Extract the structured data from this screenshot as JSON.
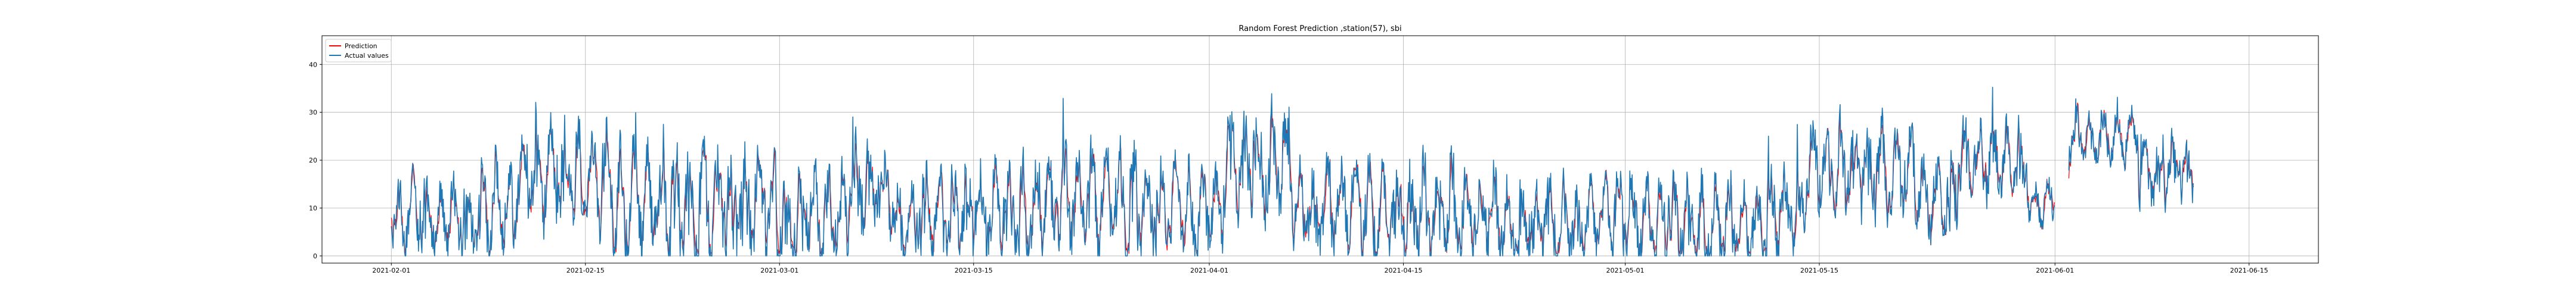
{
  "chart_data": {
    "type": "line",
    "title": "Random Forest Prediction ,station(57), sbi",
    "xlabel": "",
    "ylabel": "",
    "x_start": "2021-01-27",
    "x_end": "2021-06-20",
    "data_start": "2021-02-01",
    "data_end": "2021-06-11",
    "ylim": [
      -1.5,
      46
    ],
    "grid": true,
    "legend_position": "upper-left",
    "x_ticks": [
      {
        "date": "2021-02-01",
        "label": "2021-02-01"
      },
      {
        "date": "2021-02-15",
        "label": "2021-02-15"
      },
      {
        "date": "2021-03-01",
        "label": "2021-03-01"
      },
      {
        "date": "2021-03-15",
        "label": "2021-03-15"
      },
      {
        "date": "2021-04-01",
        "label": "2021-04-01"
      },
      {
        "date": "2021-04-15",
        "label": "2021-04-15"
      },
      {
        "date": "2021-05-01",
        "label": "2021-05-01"
      },
      {
        "date": "2021-05-15",
        "label": "2021-05-15"
      },
      {
        "date": "2021-06-01",
        "label": "2021-06-01"
      },
      {
        "date": "2021-06-15",
        "label": "2021-06-15"
      }
    ],
    "y_ticks": [
      0,
      10,
      20,
      30,
      40
    ],
    "series": [
      {
        "name": "Prediction",
        "color": "#ff0000"
      },
      {
        "name": "Actual values",
        "color": "#1f77b4"
      }
    ],
    "gap": {
      "start": "2021-06-01",
      "end": "2021-06-02"
    },
    "segments": [
      {
        "start": "2021-02-01",
        "end": "2021-02-06",
        "base": 8,
        "amp": 10
      },
      {
        "start": "2021-02-06",
        "end": "2021-02-10",
        "base": 9,
        "amp": 13
      },
      {
        "start": "2021-02-10",
        "end": "2021-02-12",
        "base": 16,
        "amp": 12
      },
      {
        "start": "2021-02-12",
        "end": "2021-02-17",
        "base": 17,
        "amp": 14
      },
      {
        "start": "2021-02-17",
        "end": "2021-03-01",
        "base": 11,
        "amp": 15
      },
      {
        "start": "2021-03-01",
        "end": "2021-03-06",
        "base": 8,
        "amp": 13
      },
      {
        "start": "2021-03-06",
        "end": "2021-03-09",
        "base": 15,
        "amp": 13
      },
      {
        "start": "2021-03-09",
        "end": "2021-03-20",
        "base": 9,
        "amp": 13
      },
      {
        "start": "2021-03-20",
        "end": "2021-03-27",
        "base": 12,
        "amp": 14
      },
      {
        "start": "2021-03-27",
        "end": "2021-04-02",
        "base": 10,
        "amp": 13
      },
      {
        "start": "2021-04-02",
        "end": "2021-04-07",
        "base": 20,
        "amp": 14
      },
      {
        "start": "2021-04-07",
        "end": "2021-04-22",
        "base": 10,
        "amp": 13
      },
      {
        "start": "2021-04-22",
        "end": "2021-05-01",
        "base": 7,
        "amp": 11
      },
      {
        "start": "2021-05-01",
        "end": "2021-05-11",
        "base": 7,
        "amp": 12
      },
      {
        "start": "2021-05-11",
        "end": "2021-05-14",
        "base": 9,
        "amp": 14
      },
      {
        "start": "2021-05-14",
        "end": "2021-05-22",
        "base": 18,
        "amp": 13
      },
      {
        "start": "2021-05-22",
        "end": "2021-05-25",
        "base": 13,
        "amp": 11
      },
      {
        "start": "2021-05-25",
        "end": "2021-05-30",
        "base": 20,
        "amp": 11
      },
      {
        "start": "2021-05-30",
        "end": "2021-06-01",
        "base": 11,
        "amp": 6
      },
      {
        "start": "2021-06-02",
        "end": "2021-06-07",
        "base": 25,
        "amp": 7
      },
      {
        "start": "2021-06-07",
        "end": "2021-06-11",
        "base": 18,
        "amp": 9
      }
    ]
  }
}
